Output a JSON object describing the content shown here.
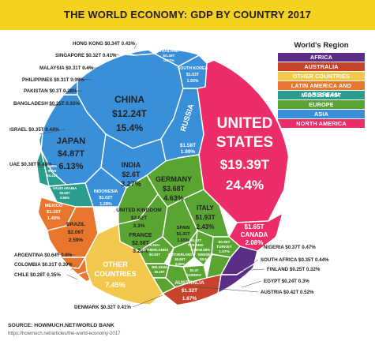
{
  "header": {
    "title": "THE WORLD ECONOMY: GDP BY COUNTRY 2017",
    "banner_color": "#f4d21f"
  },
  "legend": {
    "title": "World's Region",
    "items": [
      {
        "label": "AFRICA",
        "color": "#5b2d86"
      },
      {
        "label": "AUSTRALIA",
        "color": "#c8432b"
      },
      {
        "label": "OTHER COUNTRIES",
        "color": "#f2c94c"
      },
      {
        "label": "LATIN AMERICA AND CARIBBEAN",
        "color": "#e8762d"
      },
      {
        "label": "MIDDLE EAST",
        "color": "#2a9d8f"
      },
      {
        "label": "EUROPE",
        "color": "#5aa532"
      },
      {
        "label": "ASIA",
        "color": "#3a8fd9"
      },
      {
        "label": "NORTH AMERICA",
        "color": "#ec2d6a"
      }
    ]
  },
  "source": {
    "label": "SOURCE: HOWMUCH.NET/WORLD BANK",
    "url": "https://howmuch.net/articles/the-world-economy-2017"
  },
  "chart_data": {
    "type": "voronoi-treemap",
    "title": "THE WORLD ECONOMY: GDP BY COUNTRY 2017",
    "units": "trillion USD / share of world GDP",
    "cells": [
      {
        "name": "UNITED STATES",
        "region": "NORTH AMERICA",
        "gdp": "$19.39T",
        "share": "24.4%"
      },
      {
        "name": "CANADA",
        "region": "NORTH AMERICA",
        "gdp": "$1.65T",
        "share": "2.08%"
      },
      {
        "name": "CHINA",
        "region": "ASIA",
        "gdp": "$12.24T",
        "share": "15.4%"
      },
      {
        "name": "JAPAN",
        "region": "ASIA",
        "gdp": "$4.87T",
        "share": "6.13%"
      },
      {
        "name": "INDIA",
        "region": "ASIA",
        "gdp": "$2.6T",
        "share": "3.27%"
      },
      {
        "name": "RUSSIA",
        "region": "ASIA",
        "gdp": "$1.58T",
        "share": "1.99%"
      },
      {
        "name": "SOUTH KOREA",
        "region": "ASIA",
        "gdp": "$1.53T",
        "share": "1.93%"
      },
      {
        "name": "INDONESIA",
        "region": "ASIA",
        "gdp": "$1.02T",
        "share": "1.28%"
      },
      {
        "name": "THAILAND",
        "region": "ASIA",
        "gdp": "$0.45T",
        "share": "0.57%"
      },
      {
        "name": "HONG KONG",
        "region": "ASIA",
        "gdp": "$0.34T",
        "share": "0.43%"
      },
      {
        "name": "SINGAPORE",
        "region": "ASIA",
        "gdp": "$0.32T",
        "share": "0.41%"
      },
      {
        "name": "MALAYSIA",
        "region": "ASIA",
        "gdp": "$0.31T",
        "share": "0.4%"
      },
      {
        "name": "PHILIPPINES",
        "region": "ASIA",
        "gdp": "$0.31T",
        "share": "0.39%"
      },
      {
        "name": "PAKISTAN",
        "region": "ASIA",
        "gdp": "$0.3T",
        "share": "0.38%"
      },
      {
        "name": "BANGLADESH",
        "region": "ASIA",
        "gdp": "$0.25T",
        "share": "0.31%"
      },
      {
        "name": "GERMANY",
        "region": "EUROPE",
        "gdp": "$3.68T",
        "share": "4.63%"
      },
      {
        "name": "UNITED KINGDOM",
        "region": "EUROPE",
        "gdp": "$2.62T",
        "share": "3.3%"
      },
      {
        "name": "FRANCE",
        "region": "EUROPE",
        "gdp": "$2.58T",
        "share": "3.25%"
      },
      {
        "name": "ITALY",
        "region": "EUROPE",
        "gdp": "$1.93T",
        "share": "2.43%"
      },
      {
        "name": "SPAIN",
        "region": "EUROPE",
        "gdp": "$1.31T",
        "share": "1.65%"
      },
      {
        "name": "NETHERLANDS",
        "region": "EUROPE",
        "gdp": "$0.83T",
        "share": "1.04%"
      },
      {
        "name": "TURKEY",
        "region": "EUROPE",
        "gdp": "$0.85T",
        "share": "1.07%"
      },
      {
        "name": "SWITZERLAND",
        "region": "EUROPE",
        "gdp": "$0.68T",
        "share": "0.85%"
      },
      {
        "name": "SWEDEN",
        "region": "EUROPE",
        "gdp": "$0.54T",
        "share": "0.68%"
      },
      {
        "name": "POLAND",
        "region": "EUROPE",
        "gdp": "$0.52T",
        "share": "0.66%"
      },
      {
        "name": "BELGIUM",
        "region": "EUROPE",
        "gdp": "$0.49T",
        "share": "0.62%"
      },
      {
        "name": "NORWAY",
        "region": "EUROPE",
        "gdp": "$0.4T",
        "share": "0.5%"
      },
      {
        "name": "AUSTRIA",
        "region": "EUROPE",
        "gdp": "$0.42T",
        "share": "0.52%"
      },
      {
        "name": "DENMARK",
        "region": "EUROPE",
        "gdp": "$0.32T",
        "share": "0.41%"
      },
      {
        "name": "FINLAND",
        "region": "EUROPE",
        "gdp": "$0.25T",
        "share": "0.32%"
      },
      {
        "name": "IRAN",
        "region": "MIDDLE EAST",
        "gdp": "$0.44T",
        "share": "0.55%"
      },
      {
        "name": "SAUDI ARABIA",
        "region": "MIDDLE EAST",
        "gdp": "$0.68T",
        "share": "0.86%"
      },
      {
        "name": "ISRAEL",
        "region": "MIDDLE EAST",
        "gdp": "$0.35T",
        "share": "0.44%"
      },
      {
        "name": "UAE",
        "region": "MIDDLE EAST",
        "gdp": "$0.38T",
        "share": "0.48%"
      },
      {
        "name": "BRAZIL",
        "region": "LATIN AMERICA AND CARIBBEAN",
        "gdp": "$2.06T",
        "share": "2.59%"
      },
      {
        "name": "MEXICO",
        "region": "LATIN AMERICA AND CARIBBEAN",
        "gdp": "$1.15T",
        "share": "1.45%"
      },
      {
        "name": "ARGENTINA",
        "region": "LATIN AMERICA AND CARIBBEAN",
        "gdp": "$0.64T",
        "share": "0.8%"
      },
      {
        "name": "COLOMBIA",
        "region": "LATIN AMERICA AND CARIBBEAN",
        "gdp": "$0.31T",
        "share": "0.39%"
      },
      {
        "name": "CHILE",
        "region": "LATIN AMERICA AND CARIBBEAN",
        "gdp": "$0.28T",
        "share": "0.35%"
      },
      {
        "name": "OTHER COUNTRIES",
        "region": "OTHER COUNTRIES",
        "gdp": "",
        "share": "7.45%"
      },
      {
        "name": "AUSTRALIA",
        "region": "AUSTRALIA",
        "gdp": "$1.32T",
        "share": "1.67%"
      },
      {
        "name": "NIGERIA",
        "region": "AFRICA",
        "gdp": "$0.37T",
        "share": "0.47%"
      },
      {
        "name": "SOUTH AFRICA",
        "region": "AFRICA",
        "gdp": "$0.35T",
        "share": "0.44%"
      },
      {
        "name": "EGYPT",
        "region": "AFRICA",
        "gdp": "$0.24T",
        "share": "0.3%"
      }
    ]
  }
}
